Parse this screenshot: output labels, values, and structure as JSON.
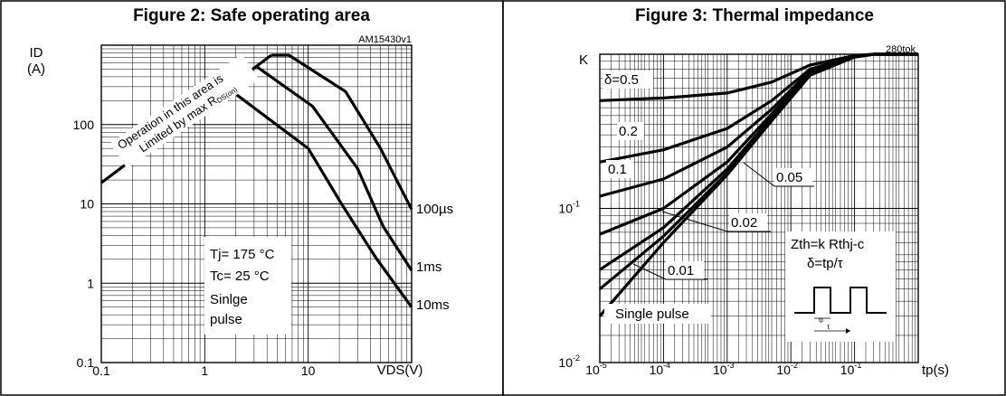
{
  "chart_data": [
    {
      "type": "line",
      "title": "Figure 2: Safe operating area",
      "code": "AM15430v1",
      "ylabel": [
        "ID",
        "(A)"
      ],
      "xlabel": "VDS(V)",
      "xscale": "log",
      "yscale": "log",
      "xlim": [
        0.1,
        100
      ],
      "ylim": [
        0.1,
        1000
      ],
      "x_ticks": [
        "0.1",
        "1",
        "10"
      ],
      "y_ticks": [
        "0.1",
        "1",
        "10",
        "100"
      ],
      "grid": true,
      "limit_line": {
        "name": "Operation in this area is Limited by max RDS(on)",
        "x": [
          0.1,
          4.4
        ],
        "y": [
          18.5,
          750
        ]
      },
      "limit_text": [
        "Operation in this area is",
        "Limited by max R",
        "DS(on)"
      ],
      "series": [
        {
          "name": "100µs",
          "x": [
            4.4,
            6.5,
            23,
            50,
            100
          ],
          "y": [
            750,
            750,
            260,
            50,
            8.5
          ]
        },
        {
          "name": "1ms",
          "x": [
            3.1,
            11,
            30,
            53,
            100
          ],
          "y": [
            550,
            170,
            28,
            5.2,
            1.45
          ]
        },
        {
          "name": "10ms",
          "x": [
            1.6,
            10,
            21,
            45,
            100
          ],
          "y": [
            300,
            50,
            10,
            2.1,
            0.5
          ]
        }
      ],
      "notes": [
        "Tj= 175 °C",
        "Tc= 25 °C",
        "Sinlge",
        "pulse"
      ]
    },
    {
      "type": "line",
      "title": "Figure 3: Thermal impedance",
      "code": "280tok",
      "ylabel": "K",
      "xlabel": "tp(s)",
      "xscale": "log",
      "yscale": "log",
      "xlim": [
        1e-05,
        1
      ],
      "ylim": [
        0.01,
        1
      ],
      "x_ticks": [
        {
          "base": "10",
          "exp": "-5"
        },
        {
          "base": "10",
          "exp": "-4"
        },
        {
          "base": "10",
          "exp": "-3"
        },
        {
          "base": "10",
          "exp": "-2"
        },
        {
          "base": "10",
          "exp": "-1"
        }
      ],
      "y_ticks": [
        {
          "base": "10",
          "exp": "-1"
        },
        {
          "base": "10",
          "exp": "-2"
        }
      ],
      "grid": true,
      "series": [
        {
          "name": "δ=0.5",
          "x": [
            1e-05,
            0.0001,
            0.001,
            0.005,
            0.02,
            0.1,
            0.2,
            1
          ],
          "y": [
            0.5,
            0.52,
            0.56,
            0.66,
            0.85,
            0.98,
            1.0,
            1.0
          ]
        },
        {
          "name": "0.2",
          "x": [
            1e-05,
            0.0001,
            0.001,
            0.005,
            0.02,
            0.1,
            0.2,
            1
          ],
          "y": [
            0.2,
            0.24,
            0.33,
            0.5,
            0.8,
            0.97,
            1.0,
            1.0
          ]
        },
        {
          "name": "0.1",
          "x": [
            1e-05,
            0.0001,
            0.001,
            0.005,
            0.02,
            0.1,
            0.2,
            1
          ],
          "y": [
            0.12,
            0.155,
            0.25,
            0.44,
            0.78,
            0.97,
            1.0,
            1.0
          ]
        },
        {
          "name": "0.05",
          "x": [
            1e-05,
            0.0001,
            0.001,
            0.005,
            0.02,
            0.1,
            0.2,
            1
          ],
          "y": [
            0.068,
            0.1,
            0.2,
            0.41,
            0.76,
            0.96,
            1.0,
            1.0
          ]
        },
        {
          "name": "0.02",
          "x": [
            1e-05,
            0.0001,
            0.001,
            0.005,
            0.02,
            0.1,
            0.2,
            1
          ],
          "y": [
            0.04,
            0.075,
            0.18,
            0.39,
            0.75,
            0.96,
            1.0,
            1.0
          ]
        },
        {
          "name": "0.01",
          "x": [
            1e-05,
            0.0001,
            0.001,
            0.005,
            0.02,
            0.1,
            0.2,
            1
          ],
          "y": [
            0.03,
            0.066,
            0.17,
            0.38,
            0.74,
            0.96,
            1.0,
            1.0
          ]
        },
        {
          "name": "Single pulse",
          "x": [
            1e-05,
            0.0001,
            0.001,
            0.005,
            0.02,
            0.1,
            0.2,
            1
          ],
          "y": [
            0.02,
            0.06,
            0.165,
            0.37,
            0.73,
            0.96,
            1.0,
            1.0
          ]
        }
      ],
      "formula": [
        "Zth=k Rthj-c",
        "δ=tp/τ"
      ],
      "inset_labels": [
        "tp",
        "τ"
      ]
    }
  ]
}
